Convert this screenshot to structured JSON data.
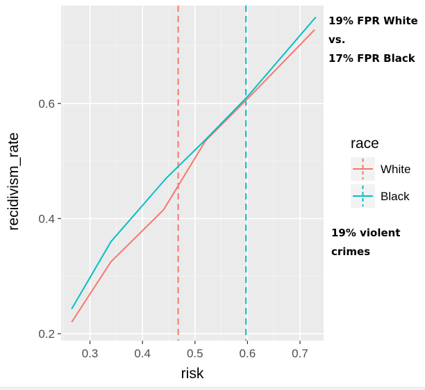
{
  "chart_data": {
    "type": "line",
    "xlabel": "risk",
    "ylabel": "recidivism_rate",
    "xlim": [
      0.245,
      0.745
    ],
    "ylim": [
      0.188,
      0.77
    ],
    "x_ticks": [
      0.3,
      0.4,
      0.5,
      0.6,
      0.7
    ],
    "y_ticks": [
      0.2,
      0.4,
      0.6
    ],
    "x_tick_labels": [
      "0.3",
      "0.4",
      "0.5",
      "0.6",
      "0.7"
    ],
    "y_tick_labels": [
      "0.2",
      "0.4",
      "0.6"
    ],
    "grid": true,
    "legend": {
      "title": "race",
      "position": "right"
    },
    "series": [
      {
        "name": "White",
        "color": "#F8766D",
        "x": [
          0.265,
          0.34,
          0.44,
          0.52,
          0.6,
          0.728
        ],
        "y": [
          0.22,
          0.325,
          0.415,
          0.535,
          0.608,
          0.728
        ]
      },
      {
        "name": "Black",
        "color": "#00BFC4",
        "x": [
          0.265,
          0.34,
          0.445,
          0.52,
          0.6,
          0.73
        ],
        "y": [
          0.243,
          0.36,
          0.47,
          0.537,
          0.612,
          0.75
        ]
      }
    ],
    "vlines": [
      {
        "x": 0.468,
        "color": "#F8766D",
        "style": "dashed"
      },
      {
        "x": 0.597,
        "color": "#00BFC4",
        "style": "dashed"
      }
    ]
  },
  "annotations": {
    "top_line1": "19% FPR White",
    "top_line2": "vs.",
    "top_line3": "17% FPR Black",
    "bottom_line1": "19% violent",
    "bottom_line2": "crimes"
  }
}
